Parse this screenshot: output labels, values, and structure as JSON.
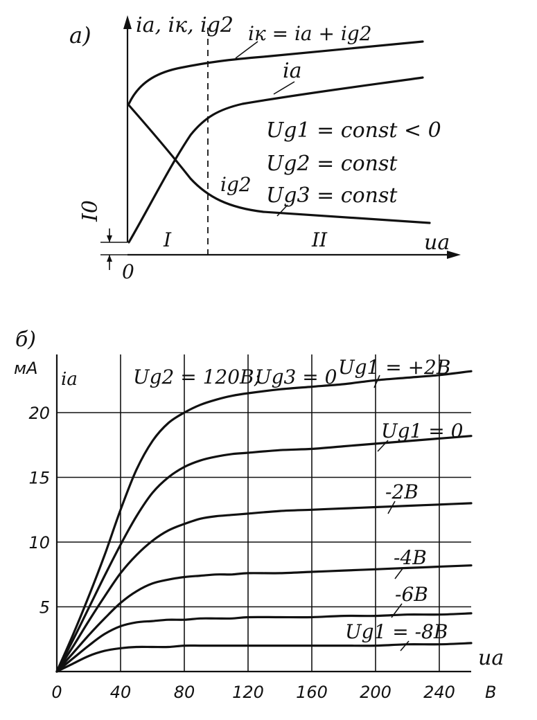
{
  "chart_data": [
    {
      "panel_label": "а)",
      "type": "line",
      "qualitative": true,
      "y_axis_label": "iа, iк, ig2",
      "x_axis_label": "uа",
      "origin_label": "0",
      "offset_label": "I0",
      "region_labels": [
        "I",
        "II"
      ],
      "series": [
        {
          "name": "iк = iа + ig2"
        },
        {
          "name": "iа"
        },
        {
          "name": "ig2"
        }
      ],
      "conditions": [
        "Ug1 = const < 0",
        "Ug2 = const",
        "Ug3 = const"
      ]
    },
    {
      "panel_label": "б)",
      "type": "line",
      "y_unit": "мА",
      "y_axis_label": "iа",
      "x_axis_label": "uа",
      "x_unit": "В",
      "header_params": [
        "Ug2 = 120В;",
        "Ug3 = 0"
      ],
      "x_ticks": [
        0,
        40,
        80,
        120,
        160,
        200,
        240
      ],
      "y_ticks": [
        5,
        10,
        15,
        20
      ],
      "xlim": [
        0,
        260
      ],
      "ylim": [
        0,
        25
      ],
      "grid": true,
      "x": [
        0,
        10,
        20,
        30,
        40,
        50,
        60,
        70,
        80,
        90,
        100,
        110,
        120,
        140,
        160,
        180,
        200,
        220,
        240,
        260
      ],
      "series": [
        {
          "name": "Ug1 = +2В",
          "values": [
            0,
            2.8,
            5.8,
            9.0,
            12.5,
            15.6,
            17.8,
            19.2,
            20.0,
            20.6,
            21.0,
            21.3,
            21.5,
            21.8,
            22.0,
            22.2,
            22.5,
            22.7,
            22.9,
            23.2
          ]
        },
        {
          "name": "Ug1 = 0",
          "values": [
            0,
            2.4,
            4.9,
            7.4,
            9.8,
            12.0,
            13.8,
            15.0,
            15.8,
            16.3,
            16.6,
            16.8,
            16.9,
            17.1,
            17.2,
            17.4,
            17.6,
            17.8,
            18.0,
            18.2
          ]
        },
        {
          "name": "-2В",
          "values": [
            0,
            1.9,
            3.9,
            5.8,
            7.6,
            9.0,
            10.1,
            10.9,
            11.4,
            11.8,
            12.0,
            12.1,
            12.2,
            12.4,
            12.5,
            12.6,
            12.7,
            12.8,
            12.9,
            13.0
          ]
        },
        {
          "name": "-4В",
          "values": [
            0,
            1.4,
            2.8,
            4.1,
            5.3,
            6.2,
            6.8,
            7.1,
            7.3,
            7.4,
            7.5,
            7.5,
            7.6,
            7.6,
            7.7,
            7.8,
            7.9,
            8.0,
            8.1,
            8.2
          ]
        },
        {
          "name": "-6В",
          "values": [
            0,
            1.0,
            2.0,
            2.9,
            3.5,
            3.8,
            3.9,
            4.0,
            4.0,
            4.1,
            4.1,
            4.1,
            4.2,
            4.2,
            4.2,
            4.3,
            4.3,
            4.4,
            4.4,
            4.5
          ]
        },
        {
          "name": "Ug1 = -8В",
          "values": [
            0,
            0.6,
            1.2,
            1.6,
            1.8,
            1.9,
            1.9,
            1.9,
            2.0,
            2.0,
            2.0,
            2.0,
            2.0,
            2.0,
            2.0,
            2.0,
            2.0,
            2.1,
            2.1,
            2.2
          ]
        }
      ]
    }
  ]
}
